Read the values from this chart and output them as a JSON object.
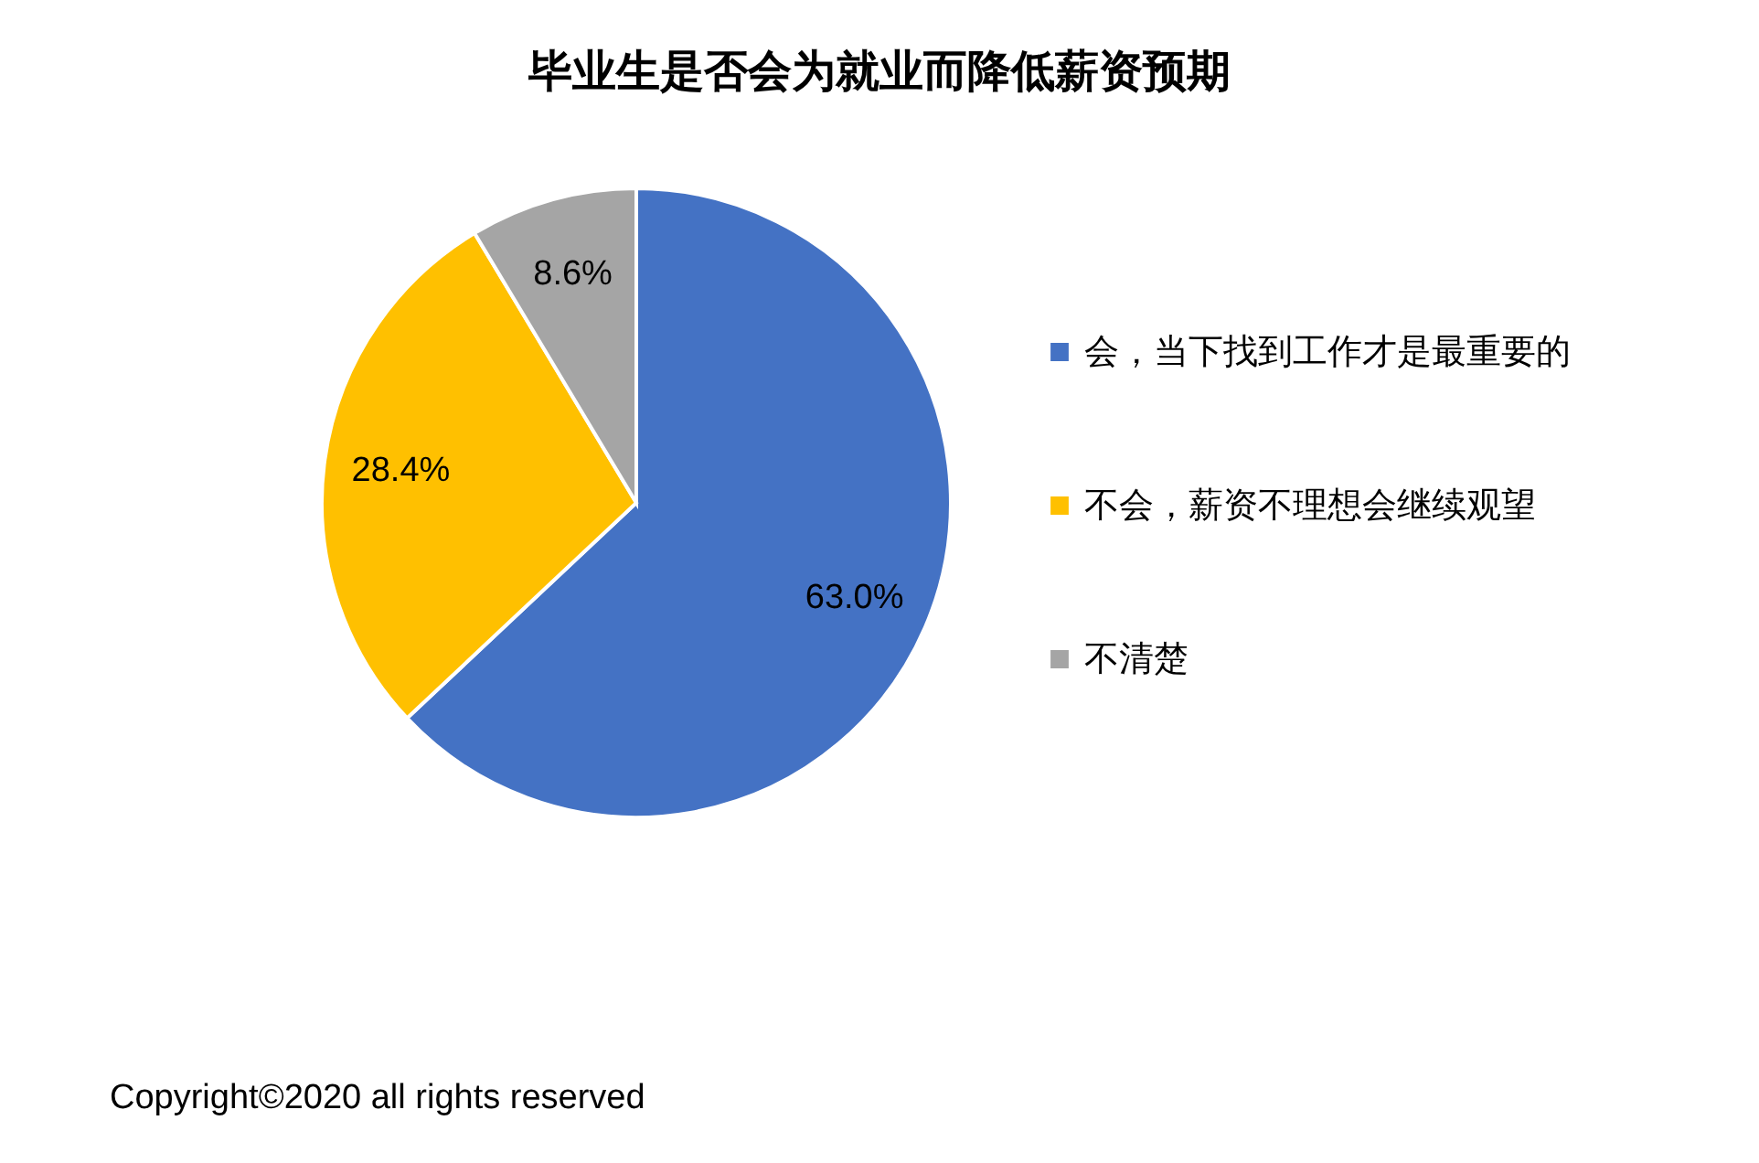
{
  "chart_data": {
    "type": "pie",
    "title": "毕业生是否会为就业而降低薪资预期",
    "categories": [
      "会，当下找到工作才是最重要的",
      "不会，薪资不理想会继续观望",
      "不清楚"
    ],
    "values": [
      63.0,
      28.4,
      8.6
    ],
    "colors": [
      "#4472c4",
      "#ffc000",
      "#a5a5a5"
    ],
    "value_labels": [
      "63.0%",
      "28.4%",
      "8.6%"
    ],
    "legend": "right",
    "annotations": [
      "Copyright©2020 all rights reserved"
    ]
  }
}
